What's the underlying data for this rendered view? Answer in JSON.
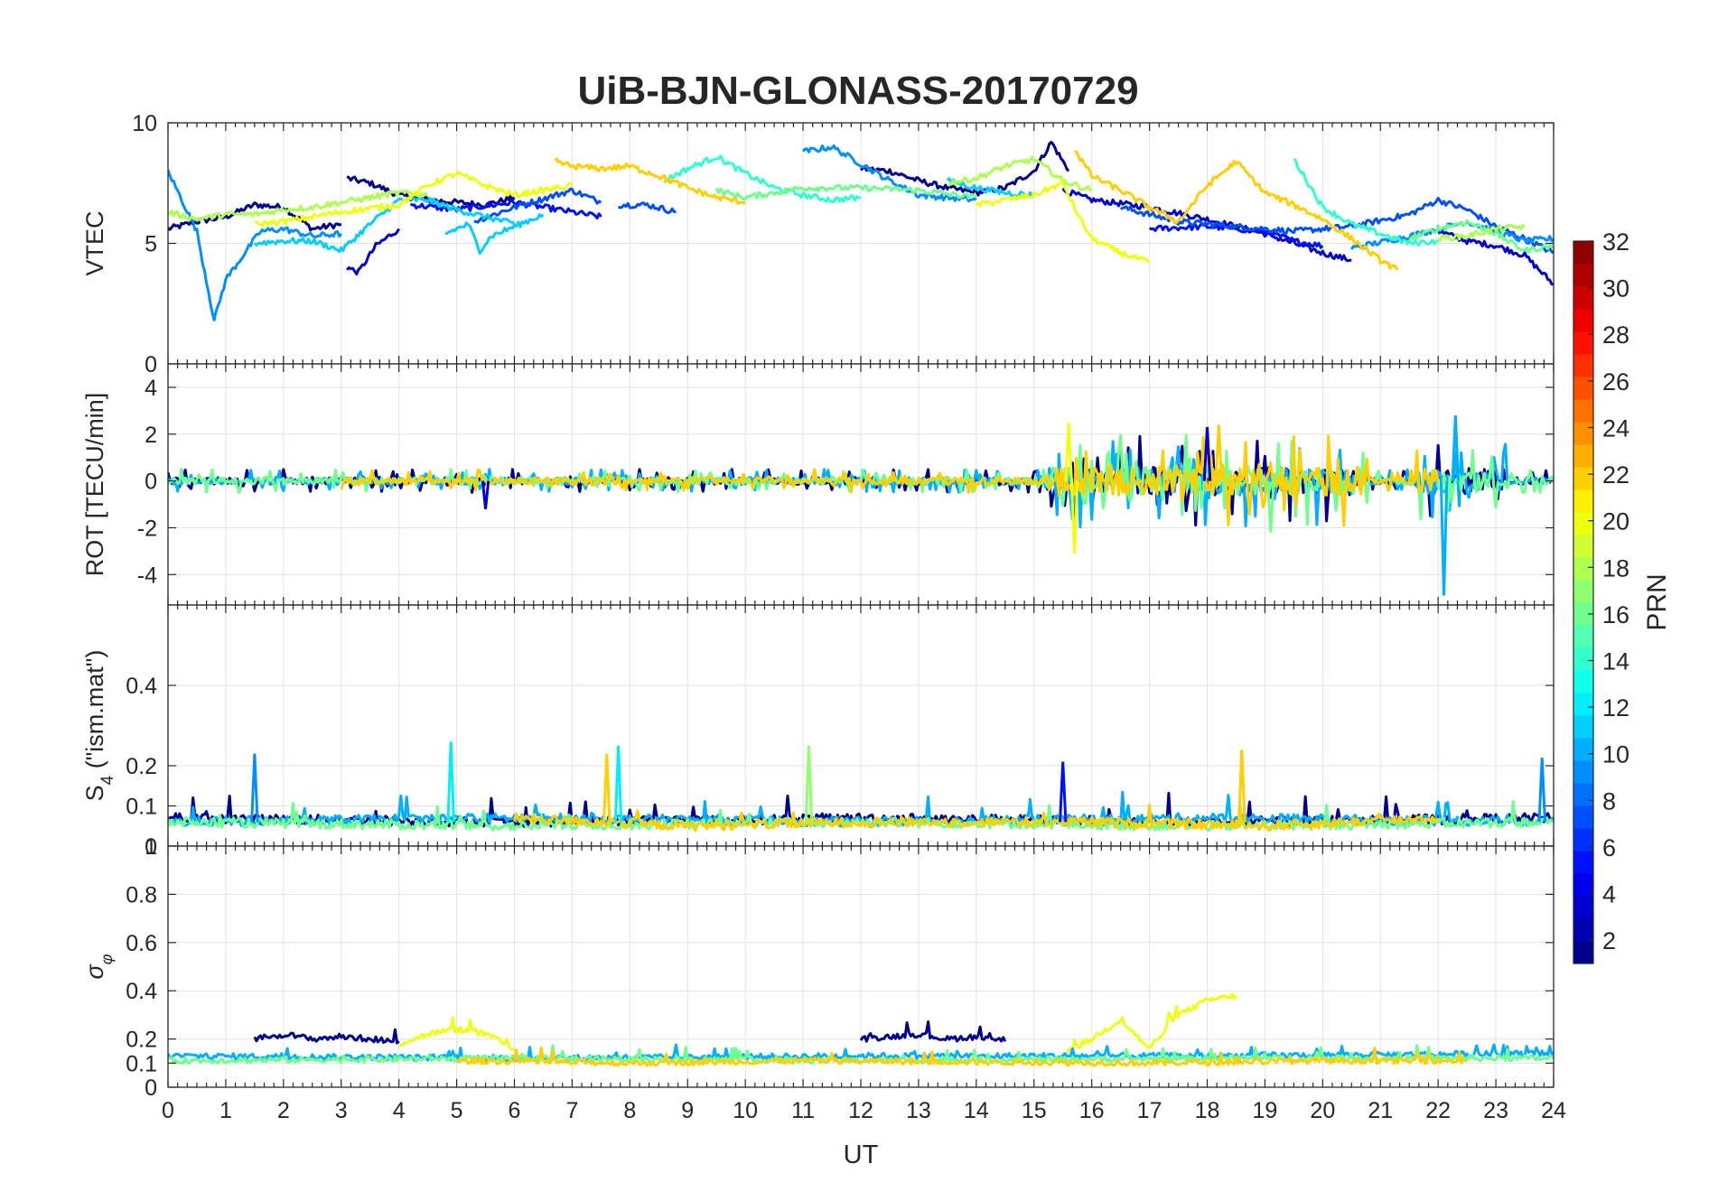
{
  "chart_data": [
    {
      "type": "line",
      "title": "UiB-BJN-GLONASS-20170729",
      "ylabel": "VTEC",
      "xlabel": "",
      "xlim": [
        0,
        24
      ],
      "ylim": [
        0,
        10
      ],
      "yticks": [
        0,
        5,
        10
      ],
      "grid": true,
      "series": [
        {
          "color_index": 1,
          "x": [
            0,
            0.5,
            1,
            1.5,
            2,
            2.5,
            3
          ],
          "y": [
            5.6,
            5.9,
            6.1,
            6.6,
            6.5,
            5.6,
            5.8
          ]
        },
        {
          "color_index": 1,
          "x": [
            3.1,
            3.5,
            4,
            4.5,
            5,
            5.5,
            6
          ],
          "y": [
            7.7,
            7.5,
            7.0,
            6.8,
            6.7,
            6.6,
            6.9
          ]
        },
        {
          "color_index": 1,
          "x": [
            12,
            12.5,
            13,
            13.5,
            14,
            14.5,
            15,
            15.3,
            15.6
          ],
          "y": [
            8.1,
            8.0,
            7.6,
            7.3,
            7.1,
            7.3,
            8.0,
            9.2,
            8.0
          ]
        },
        {
          "color_index": 3,
          "x": [
            3.1,
            3.3,
            3.6,
            4
          ],
          "y": [
            4.0,
            3.8,
            4.9,
            5.6
          ]
        },
        {
          "color_index": 3,
          "x": [
            15.5,
            16,
            17,
            18,
            19,
            20,
            20.5
          ],
          "y": [
            7.2,
            6.8,
            6.5,
            6.0,
            5.4,
            4.6,
            4.3
          ]
        },
        {
          "color_index": 3,
          "x": [
            22,
            22.5,
            23,
            23.5,
            24
          ],
          "y": [
            5.5,
            5.1,
            4.9,
            4.5,
            3.3
          ]
        },
        {
          "color_index": 5,
          "x": [
            4.2,
            5,
            6,
            7,
            7.5
          ],
          "y": [
            6.6,
            6.4,
            6.7,
            6.3,
            6.1
          ]
        },
        {
          "color_index": 5,
          "x": [
            17,
            18,
            19,
            19.5,
            20
          ],
          "y": [
            5.6,
            5.7,
            5.5,
            5.1,
            4.9
          ]
        },
        {
          "color_index": 7,
          "x": [
            5.3,
            6,
            7,
            7.5
          ],
          "y": [
            5.9,
            6.5,
            7.2,
            6.7
          ]
        },
        {
          "color_index": 7,
          "x": [
            7.8,
            8.3,
            8.8
          ],
          "y": [
            6.6,
            6.6,
            6.3
          ]
        },
        {
          "color_index": 7,
          "x": [
            16.5,
            17.5,
            18.5,
            19.5,
            20.5,
            21.5,
            22,
            22.5,
            23,
            23.5,
            24
          ],
          "y": [
            6.5,
            5.9,
            5.7,
            5.5,
            5.7,
            6.2,
            6.8,
            6.4,
            5.7,
            5.2,
            4.6
          ]
        },
        {
          "color_index": 9,
          "x": [
            0,
            0.2,
            0.5,
            0.8,
            1,
            1.3,
            1.6,
            2,
            2.5,
            3
          ],
          "y": [
            8.0,
            7.0,
            5.5,
            1.8,
            3.5,
            4.5,
            5.5,
            5.6,
            5.3,
            5.4
          ]
        },
        {
          "color_index": 9,
          "x": [
            11,
            11.5,
            12,
            12.5,
            13,
            13.5,
            14
          ],
          "y": [
            8.8,
            9.0,
            8.3,
            7.6,
            7.0,
            6.9,
            6.8
          ]
        },
        {
          "color_index": 9,
          "x": [
            20.5,
            21.5,
            22.5,
            23.5,
            24
          ],
          "y": [
            4.8,
            5.3,
            5.9,
            5.1,
            5.2
          ]
        },
        {
          "color_index": 11,
          "x": [
            1.5,
            2,
            2.5,
            3,
            3.5,
            4,
            4.5,
            5,
            5.5,
            6
          ],
          "y": [
            5.0,
            5.1,
            5.1,
            4.7,
            5.8,
            6.8,
            6.8,
            6.4,
            6.1,
            5.8
          ]
        },
        {
          "color_index": 11,
          "x": [
            4.8,
            5.2,
            5.4,
            5.6,
            6,
            6.5
          ],
          "y": [
            5.4,
            5.8,
            4.7,
            5.3,
            5.7,
            6.2
          ]
        },
        {
          "color_index": 11,
          "x": [
            13.5,
            14,
            14.5,
            15
          ],
          "y": [
            7.6,
            7.3,
            7.1,
            7.0
          ]
        },
        {
          "color_index": 14,
          "x": [
            8.6,
            9,
            9.5,
            10,
            10.5,
            11,
            11.5,
            12
          ],
          "y": [
            7.6,
            8.1,
            8.6,
            7.9,
            7.3,
            7.0,
            6.8,
            6.9
          ]
        },
        {
          "color_index": 14,
          "x": [
            19.5,
            20,
            20.5,
            21,
            21.5,
            22
          ],
          "y": [
            8.5,
            6.5,
            5.8,
            5.4,
            5.0,
            5.1
          ]
        },
        {
          "color_index": 16,
          "x": [
            9.5,
            10,
            11,
            12,
            13,
            14
          ],
          "y": [
            7.2,
            6.9,
            7.3,
            7.3,
            7.2,
            6.9
          ]
        },
        {
          "color_index": 16,
          "x": [
            21.5,
            22,
            22.5,
            23,
            23.5,
            24
          ],
          "y": [
            5.2,
            5.6,
            5.9,
            5.4,
            4.7,
            4.9
          ]
        },
        {
          "color_index": 18,
          "x": [
            0,
            0.5,
            1,
            1.5,
            2,
            2.5,
            3,
            3.5,
            4,
            4.5
          ],
          "y": [
            6.3,
            6.0,
            6.2,
            6.2,
            6.4,
            6.5,
            6.7,
            6.9,
            7.1,
            7.0
          ]
        },
        {
          "color_index": 18,
          "x": [
            13.5,
            14,
            14.5,
            15,
            15.5,
            16
          ],
          "y": [
            7.5,
            7.7,
            8.2,
            8.5,
            7.6,
            7.2
          ]
        },
        {
          "color_index": 18,
          "x": [
            22,
            22.5,
            23,
            23.5
          ],
          "y": [
            5.2,
            5.3,
            5.6,
            5.7
          ]
        },
        {
          "color_index": 20,
          "x": [
            1.5,
            2,
            3,
            4,
            4.5,
            5,
            5.5,
            6,
            6.5,
            7
          ],
          "y": [
            5.8,
            5.9,
            6.3,
            6.6,
            7.4,
            7.9,
            7.4,
            7.0,
            7.2,
            7.4
          ]
        },
        {
          "color_index": 20,
          "x": [
            14,
            14.5,
            15,
            15.5,
            15.8,
            16,
            16.5,
            17
          ],
          "y": [
            6.6,
            6.8,
            7.0,
            7.5,
            6.0,
            5.2,
            4.6,
            4.2
          ]
        },
        {
          "color_index": 22,
          "x": [
            6.7,
            7,
            7.5,
            8,
            8.5,
            9,
            9.5,
            10
          ],
          "y": [
            8.4,
            8.2,
            8.1,
            8.2,
            7.8,
            7.3,
            6.9,
            6.7
          ]
        },
        {
          "color_index": 22,
          "x": [
            15.7,
            16,
            16.5,
            17,
            17.5,
            18,
            18.5,
            19,
            19.5,
            20,
            20.5,
            21,
            21.3
          ],
          "y": [
            8.9,
            7.8,
            7.2,
            6.5,
            5.9,
            7.4,
            8.4,
            7.1,
            6.6,
            6.0,
            5.2,
            4.3,
            3.9
          ]
        }
      ]
    },
    {
      "type": "line",
      "ylabel": "ROT [TECU/min]",
      "xlabel": "",
      "xlim": [
        0,
        24
      ],
      "ylim": [
        -5.3,
        5
      ],
      "yticks": [
        -4,
        -2,
        0,
        2,
        4
      ],
      "grid": true,
      "note_extremes": [
        {
          "x": 22.1,
          "y": -4.9,
          "color_index": 10
        },
        {
          "x": 22.3,
          "y": 2.8,
          "color_index": 10
        },
        {
          "x": 15.7,
          "y": -3.1,
          "color_index": 20
        },
        {
          "x": 15.6,
          "y": 2.5,
          "color_index": 20
        },
        {
          "x": 18.2,
          "y": 2.4,
          "color_index": 22
        },
        {
          "x": 19.1,
          "y": -2.2,
          "color_index": 16
        },
        {
          "x": 18.0,
          "y": 2.3,
          "color_index": 3
        },
        {
          "x": 5.5,
          "y": -1.2,
          "color_index": 3
        }
      ],
      "series": [
        {
          "color_index": 1,
          "x": [
            0,
            4,
            8,
            12,
            15,
            18,
            21,
            24
          ],
          "y": [
            0,
            0,
            0,
            0,
            0,
            0,
            0,
            0
          ]
        },
        {
          "color_index": 10,
          "x": [
            0,
            4,
            8,
            12,
            15,
            18,
            21,
            24
          ],
          "y": [
            0,
            0,
            0,
            0,
            0,
            0,
            0,
            0
          ]
        },
        {
          "color_index": 16,
          "x": [
            0,
            4,
            8,
            12,
            15,
            18,
            21,
            24
          ],
          "y": [
            0,
            0,
            0,
            0,
            0,
            0,
            0,
            0
          ]
        },
        {
          "color_index": 22,
          "x": [
            3,
            8,
            12,
            17,
            22
          ],
          "y": [
            0,
            0,
            0,
            0,
            0
          ]
        }
      ]
    },
    {
      "type": "line",
      "ylabel": "S4 (\"ism.mat\")",
      "ylabel_base": "S",
      "ylabel_sub": "4",
      "ylabel_rest": " (\"ism.mat\")",
      "xlabel": "",
      "xlim": [
        0,
        24
      ],
      "ylim": [
        0,
        0.6
      ],
      "yticks": [
        0,
        0.1,
        0.2,
        0.4
      ],
      "grid": true,
      "note_peaks": [
        {
          "x": 1.5,
          "y": 0.23,
          "color_index": 9
        },
        {
          "x": 4.9,
          "y": 0.26,
          "color_index": 12
        },
        {
          "x": 7.8,
          "y": 0.25,
          "color_index": 12
        },
        {
          "x": 7.6,
          "y": 0.23,
          "color_index": 22
        },
        {
          "x": 11.1,
          "y": 0.25,
          "color_index": 17
        },
        {
          "x": 18.6,
          "y": 0.24,
          "color_index": 22
        },
        {
          "x": 15.5,
          "y": 0.21,
          "color_index": 5
        },
        {
          "x": 23.8,
          "y": 0.22,
          "color_index": 9
        }
      ],
      "series": [
        {
          "color_index": 1,
          "x": [
            0,
            6,
            12,
            18,
            24
          ],
          "y": [
            0.07,
            0.06,
            0.07,
            0.06,
            0.07
          ]
        },
        {
          "color_index": 10,
          "x": [
            0,
            6,
            12,
            18,
            24
          ],
          "y": [
            0.06,
            0.07,
            0.06,
            0.07,
            0.06
          ]
        },
        {
          "color_index": 16,
          "x": [
            0,
            6,
            12,
            18,
            24
          ],
          "y": [
            0.06,
            0.05,
            0.06,
            0.05,
            0.06
          ]
        },
        {
          "color_index": 22,
          "x": [
            6,
            9,
            12,
            16,
            19,
            22
          ],
          "y": [
            0.07,
            0.05,
            0.06,
            0.06,
            0.05,
            0.07
          ]
        }
      ]
    },
    {
      "type": "line",
      "ylabel": "σφ",
      "xlabel": "UT",
      "xlim": [
        0,
        24
      ],
      "xticks": [
        0,
        1,
        2,
        3,
        4,
        5,
        6,
        7,
        8,
        9,
        10,
        11,
        12,
        13,
        14,
        15,
        16,
        17,
        18,
        19,
        20,
        21,
        22,
        23,
        24
      ],
      "ylim": [
        0,
        1
      ],
      "yticks": [
        0,
        0.1,
        0.2,
        0.4,
        0.6,
        0.8,
        1
      ],
      "grid": true,
      "series": [
        {
          "color_index": 1,
          "x": [
            1.5,
            2,
            2.5,
            3,
            3.5,
            4
          ],
          "y": [
            0.2,
            0.22,
            0.2,
            0.21,
            0.2,
            0.19
          ]
        },
        {
          "color_index": 1,
          "x": [
            12,
            12.5,
            13,
            13.5,
            14,
            14.5
          ],
          "y": [
            0.2,
            0.21,
            0.22,
            0.2,
            0.21,
            0.19
          ]
        },
        {
          "color_index": 20,
          "x": [
            4,
            4.5,
            5,
            5.5,
            6
          ],
          "y": [
            0.18,
            0.22,
            0.24,
            0.22,
            0.16
          ]
        },
        {
          "color_index": 20,
          "x": [
            15.5,
            16,
            16.5,
            17,
            17.5,
            18,
            18.5
          ],
          "y": [
            0.14,
            0.2,
            0.28,
            0.16,
            0.3,
            0.36,
            0.38
          ]
        },
        {
          "color_index": 10,
          "x": [
            0,
            6,
            12,
            18,
            24
          ],
          "y": [
            0.13,
            0.12,
            0.13,
            0.13,
            0.14
          ]
        },
        {
          "color_index": 16,
          "x": [
            0,
            6,
            12,
            18,
            24
          ],
          "y": [
            0.11,
            0.12,
            0.11,
            0.12,
            0.12
          ]
        },
        {
          "color_index": 22,
          "x": [
            5,
            8,
            11,
            17,
            20,
            22.5
          ],
          "y": [
            0.11,
            0.1,
            0.11,
            0.1,
            0.11,
            0.11
          ]
        }
      ]
    }
  ],
  "colorbar": {
    "label": "PRN",
    "colormap": "jet",
    "range": [
      1,
      32
    ],
    "ticks": [
      2,
      4,
      6,
      8,
      10,
      12,
      14,
      16,
      18,
      20,
      22,
      24,
      26,
      28,
      30,
      32
    ],
    "levels": 32
  }
}
